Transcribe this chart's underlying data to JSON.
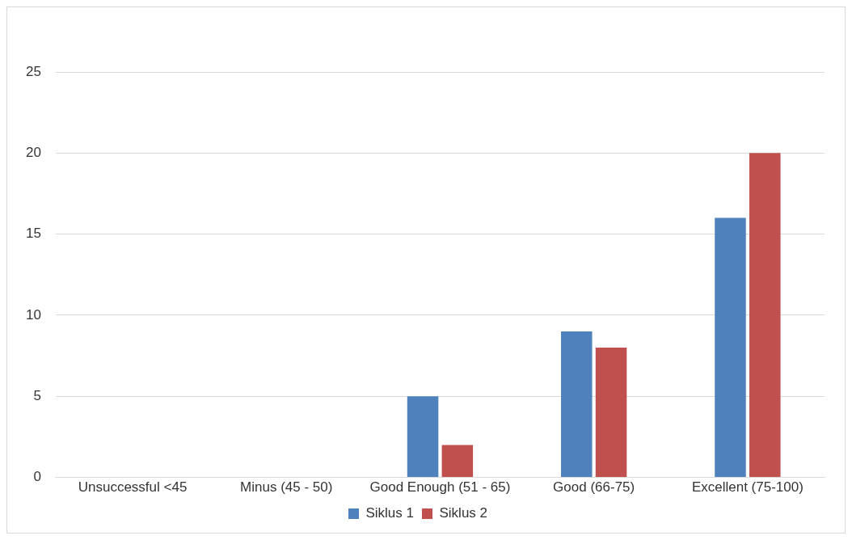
{
  "chart_data": {
    "type": "bar",
    "categories": [
      "Unsuccessful <45",
      "Minus (45 - 50)",
      "Good Enough (51 - 65)",
      "Good (66-75)",
      "Excellent (75-100)"
    ],
    "series": [
      {
        "name": "Siklus 1",
        "color": "#4f81bd",
        "values": [
          0,
          0,
          5,
          9,
          16
        ]
      },
      {
        "name": "Siklus 2",
        "color": "#c0504d",
        "values": [
          0,
          0,
          2,
          8,
          20
        ]
      }
    ],
    "ylim": [
      0,
      25
    ],
    "yticks": [
      0,
      5,
      10,
      15,
      20,
      25
    ],
    "grid": "y",
    "legend": "bottom"
  }
}
